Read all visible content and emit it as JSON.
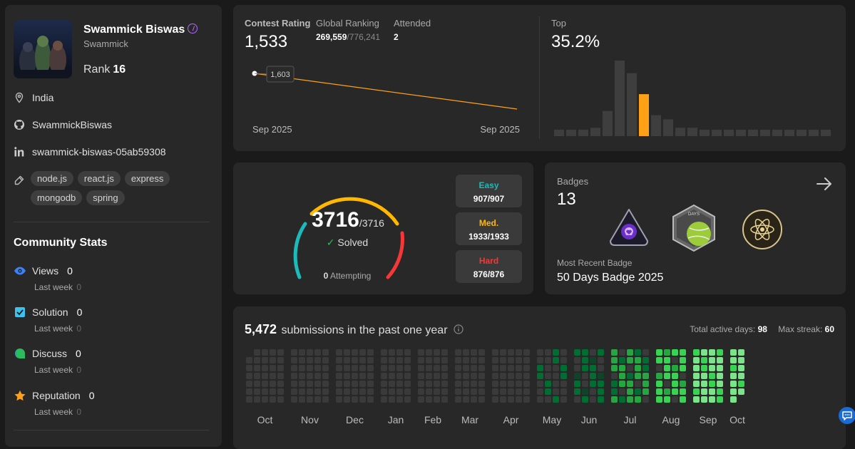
{
  "profile": {
    "name": "Swammick Biswas",
    "username": "Swammick",
    "rank_label": "Rank",
    "rank_value": "16",
    "location": "India",
    "github": "SwammickBiswas",
    "linkedin": "swammick-biswas-05ab59308",
    "skills": [
      "node.js",
      "react.js",
      "express",
      "mongodb",
      "spring"
    ]
  },
  "community": {
    "title": "Community Stats",
    "stats": [
      {
        "label": "Views",
        "value": "0",
        "sub": "Last week",
        "sub_value": "0",
        "color": "#3b82f6"
      },
      {
        "label": "Solution",
        "value": "0",
        "sub": "Last week",
        "sub_value": "0",
        "color": "#3dc2ec"
      },
      {
        "label": "Discuss",
        "value": "0",
        "sub": "Last week",
        "sub_value": "0",
        "color": "#2cbb5d"
      },
      {
        "label": "Reputation",
        "value": "0",
        "sub": "Last week",
        "sub_value": "0",
        "color": "#ffa116"
      }
    ]
  },
  "contest": {
    "rating_label": "Contest Rating",
    "rating": "1,533",
    "global_label": "Global Ranking",
    "global_rank": "269,559",
    "global_total": "/776,241",
    "attended_label": "Attended",
    "attended": "2",
    "top_label": "Top",
    "top_value": "35.2%",
    "tooltip": "1,603",
    "x_start": "Sep 2025",
    "x_end": "Sep 2025",
    "line_color": "#ffa116",
    "histogram": [
      1,
      1,
      1,
      2,
      6,
      18,
      15,
      10,
      5,
      4,
      2,
      2,
      1,
      1,
      1,
      1,
      1,
      1,
      1,
      1,
      1,
      1,
      1
    ],
    "histogram_highlight": 7
  },
  "solved": {
    "count": "3716",
    "total": "/3716",
    "label": "Solved",
    "attempting": "0",
    "attempting_label": "Attempting",
    "easy_label": "Easy",
    "easy_value": "907/907",
    "easy_color": "#1cbaba",
    "med_label": "Med.",
    "med_value": "1933/1933",
    "med_color": "#ffb700",
    "hard_label": "Hard",
    "hard_value": "876/876",
    "hard_color": "#f63737"
  },
  "badges": {
    "label": "Badges",
    "count": "13",
    "recent_label": "Most Recent Badge",
    "recent_name": "50 Days Badge 2025",
    "days_text": "DAYS"
  },
  "heatmap": {
    "count": "5,472",
    "title": "submissions in the past one year",
    "active_label": "Total active days:",
    "active_value": "98",
    "streak_label": "Max streak:",
    "streak_value": "60",
    "months": [
      "Oct",
      "Nov",
      "Dec",
      "Jan",
      "Feb",
      "Mar",
      "Apr",
      "May",
      "Jun",
      "Jul",
      "Aug",
      "Sep",
      "Oct"
    ],
    "colors": [
      "#3a3a3a",
      "#0e4429",
      "#006d32",
      "#26a641",
      "#39d353",
      "#7be38a"
    ]
  }
}
